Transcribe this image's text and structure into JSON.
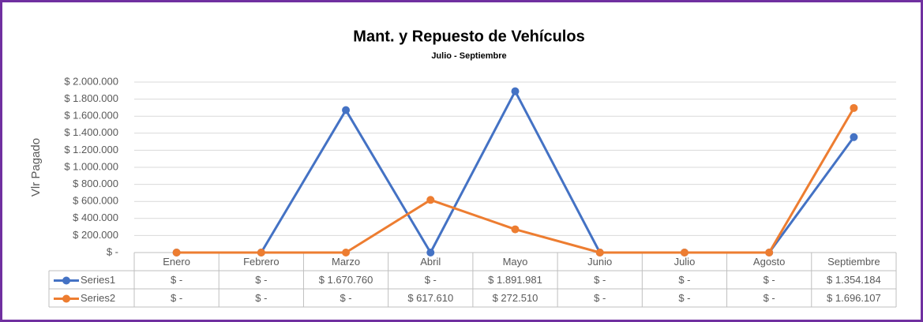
{
  "chart_data": {
    "type": "line",
    "title": "Mant. y Repuesto de Vehículos",
    "subtitle": "Julio - Septiembre",
    "y_label": "Vlr Pagado",
    "categories": [
      "Enero",
      "Febrero",
      "Marzo",
      "Abril",
      "Mayo",
      "Junio",
      "Julio",
      "Agosto",
      "Septiembre"
    ],
    "series": [
      {
        "name": "Series1",
        "color": "#4472c4",
        "values": [
          0,
          0,
          1670760,
          0,
          1891981,
          0,
          0,
          0,
          1354184
        ],
        "value_labels": [
          "$ -",
          "$ -",
          "$ 1.670.760",
          "$ -",
          "$ 1.891.981",
          "$ -",
          "$ -",
          "$ -",
          "$ 1.354.184"
        ]
      },
      {
        "name": "Series2",
        "color": "#ed7d31",
        "values": [
          0,
          0,
          0,
          617610,
          272510,
          0,
          0,
          0,
          1696107
        ],
        "value_labels": [
          "$ -",
          "$ -",
          "$ -",
          "$ 617.610",
          "$ 272.510",
          "$ -",
          "$ -",
          "$ -",
          "$ 1.696.107"
        ]
      }
    ],
    "ylim": [
      0,
      2000000
    ],
    "yticks": [
      {
        "value": 0,
        "label": "$ -"
      },
      {
        "value": 200000,
        "label": "$ 200.000"
      },
      {
        "value": 400000,
        "label": "$ 400.000"
      },
      {
        "value": 600000,
        "label": "$ 600.000"
      },
      {
        "value": 800000,
        "label": "$ 800.000"
      },
      {
        "value": 1000000,
        "label": "$ 1.000.000"
      },
      {
        "value": 1200000,
        "label": "$ 1.200.000"
      },
      {
        "value": 1400000,
        "label": "$ 1.400.000"
      },
      {
        "value": 1600000,
        "label": "$ 1.600.000"
      },
      {
        "value": 1800000,
        "label": "$ 1.800.000"
      },
      {
        "value": 2000000,
        "label": "$ 2.000.000"
      }
    ],
    "grid": true
  }
}
